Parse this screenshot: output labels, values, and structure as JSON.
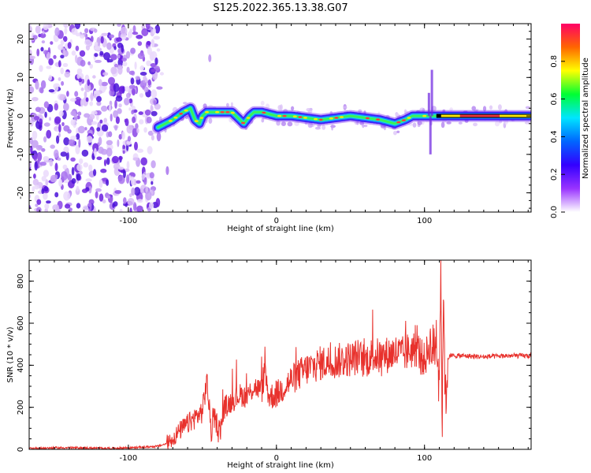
{
  "title": "S125.2022.365.13.38.G07",
  "colors": {
    "snr_line": "#e8312c",
    "ridge_core": "#e8343c",
    "background": "#ffffff"
  },
  "chart_data": [
    {
      "type": "heatmap",
      "xlabel": "Height of straight line (km)",
      "ylabel": "Frequency (Hz)",
      "xlim": [
        -167,
        172
      ],
      "ylim": [
        -25,
        24
      ],
      "xticks": [
        -100,
        0,
        100
      ],
      "yticks": [
        -20,
        -10,
        0,
        10,
        20
      ],
      "grid": false,
      "colorbar": {
        "label": "Normalized spectral amplitude",
        "range": [
          0,
          1
        ],
        "ticks": [
          "0.0",
          "0.2",
          "0.4",
          "0.6",
          "0.8"
        ],
        "colormap": [
          "#ffffff",
          "#9933ff",
          "#3300ff",
          "#0066ff",
          "#00e5ff",
          "#00ff33",
          "#ffff00",
          "#ff6600",
          "#ff0066"
        ]
      },
      "ridge": {
        "x": [
          -80,
          -70,
          -63,
          -58,
          -55,
          -52,
          -50,
          -47,
          -42,
          -30,
          -22,
          -18,
          -15,
          -10,
          0,
          10,
          30,
          50,
          70,
          80,
          87,
          92,
          98,
          103,
          105,
          110,
          120,
          150,
          172
        ],
        "y": [
          -3,
          -1,
          1,
          2,
          -1,
          -2,
          0,
          1,
          1,
          1,
          -2,
          0,
          1,
          1,
          0,
          0,
          -1,
          0,
          -1,
          -2,
          -1,
          0,
          0,
          0,
          0,
          0,
          0,
          0,
          0
        ]
      },
      "noise_region_x": [
        -167,
        -80
      ]
    },
    {
      "type": "line",
      "xlabel": "Height of straight line (km)",
      "ylabel": "SNR (10 * v/v)",
      "xlim": [
        -167,
        172
      ],
      "ylim": [
        0,
        900
      ],
      "xticks": [
        -100,
        0,
        100
      ],
      "yticks": [
        0,
        200,
        400,
        600,
        800
      ],
      "grid": false,
      "series": [
        {
          "x": [
            -167,
            -140,
            -110,
            -90,
            -80,
            -75,
            -70,
            -65,
            -60,
            -55,
            -50,
            -47,
            -44,
            -42,
            -40,
            -38,
            -35,
            -30,
            -25,
            -20,
            -15,
            -10,
            -8,
            -5,
            0,
            10,
            20,
            30,
            40,
            50,
            55,
            60,
            65,
            70,
            80,
            85,
            90,
            95,
            100,
            104,
            106,
            108,
            110,
            111,
            112,
            113,
            114,
            116,
            118,
            125,
            140,
            155,
            172
          ],
          "y": [
            5,
            8,
            5,
            10,
            15,
            25,
            50,
            90,
            120,
            150,
            180,
            330,
            80,
            150,
            120,
            90,
            200,
            230,
            260,
            250,
            300,
            280,
            370,
            250,
            260,
            330,
            380,
            410,
            420,
            430,
            440,
            420,
            450,
            440,
            460,
            450,
            470,
            480,
            420,
            510,
            460,
            540,
            360,
            880,
            100,
            820,
            200,
            440,
            445,
            445,
            440,
            445,
            445
          ]
        }
      ]
    }
  ]
}
